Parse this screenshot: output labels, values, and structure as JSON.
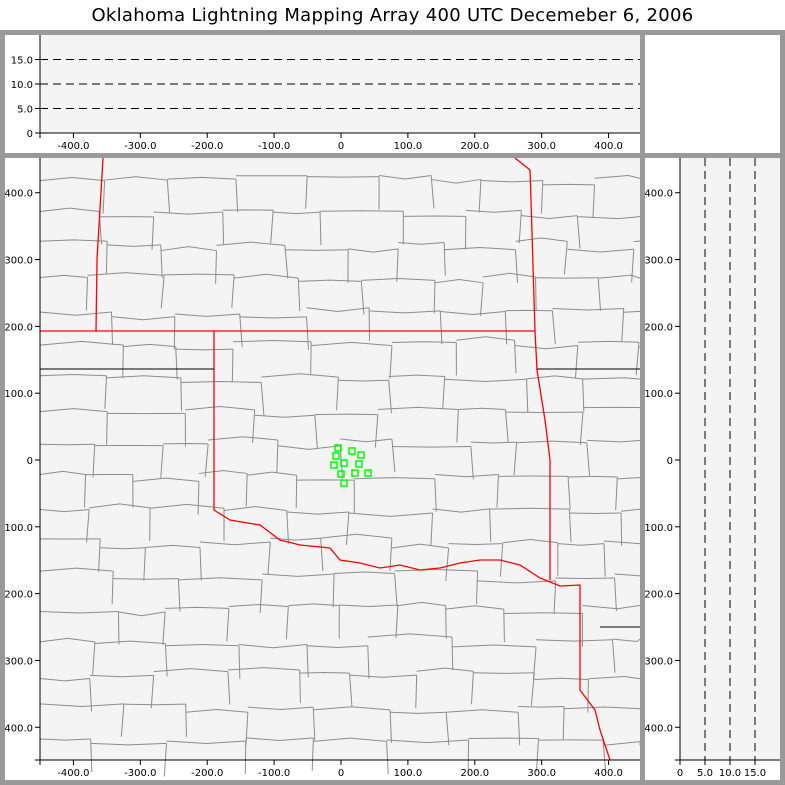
{
  "title": "Oklahoma Lightning Mapping Array   400 UTC  Decemeber 6, 2006",
  "colors": {
    "background": "#999999",
    "plot_bg": "#f4f4f4",
    "state_border": "#ff0000",
    "county_line": "#8c8c8c",
    "source": "#00ff00"
  },
  "chart_data": [
    {
      "name": "altitude-vs-east-west",
      "type": "scatter",
      "xlim": [
        -450,
        447
      ],
      "ylim": [
        0,
        20
      ],
      "xticks": [
        "-400.0",
        "-300.0",
        "-200.0",
        "-100.0",
        "0",
        "100.0",
        "200.0",
        "300.0",
        "400.0"
      ],
      "xtick_values": [
        -400,
        -300,
        -200,
        -100,
        0,
        100,
        200,
        300,
        400
      ],
      "yticks": [
        "0",
        "5.0",
        "10.0",
        "15.0"
      ],
      "ytick_values": [
        0,
        5,
        10,
        15
      ],
      "grid": "dashed horizontal at 5, 10, 15",
      "points": []
    },
    {
      "name": "plan-view-map",
      "type": "scatter",
      "xlim": [
        -450,
        447
      ],
      "ylim": [
        -449,
        452
      ],
      "xticks": [
        "-400.0",
        "-300.0",
        "-200.0",
        "-100.0",
        "0",
        "100.0",
        "200.0",
        "300.0",
        "400.0"
      ],
      "xtick_values": [
        -400,
        -300,
        -200,
        -100,
        0,
        100,
        200,
        300,
        400
      ],
      "yticks": [
        "400.0",
        "300.0",
        "200.0",
        "100.0",
        "0",
        "-100.0",
        "-200.0",
        "-300.0",
        "-400.0"
      ],
      "ytick_values": [
        400,
        300,
        200,
        100,
        0,
        -100,
        -200,
        -300,
        -400
      ],
      "background": "county map with red state borders",
      "marker": "open green square",
      "points": [
        [
          -4.5,
          18
        ],
        [
          16.4,
          13.5
        ],
        [
          29.9,
          7.5
        ],
        [
          -7.5,
          6
        ],
        [
          4.5,
          -4.5
        ],
        [
          -10.5,
          -7.5
        ],
        [
          26.9,
          -6
        ],
        [
          0,
          -21
        ],
        [
          20.9,
          -19.5
        ],
        [
          40.4,
          -19.5
        ],
        [
          4.5,
          -34.5
        ]
      ]
    },
    {
      "name": "north-south-vs-altitude",
      "type": "scatter",
      "xlim": [
        0,
        20
      ],
      "ylim": [
        -449,
        452
      ],
      "xticks": [
        "0",
        "5.0",
        "10.0",
        "15.0"
      ],
      "xtick_values": [
        0,
        5,
        10,
        15
      ],
      "yticks": [
        "400.0",
        "300.0",
        "200.0",
        "100.0",
        "0",
        "-100.0",
        "-200.0",
        "-300.0",
        "-400.0"
      ],
      "ytick_values": [
        400,
        300,
        200,
        100,
        0,
        -100,
        -200,
        -300,
        -400
      ],
      "grid": "dashed vertical at 5, 10, 15",
      "points": []
    }
  ]
}
